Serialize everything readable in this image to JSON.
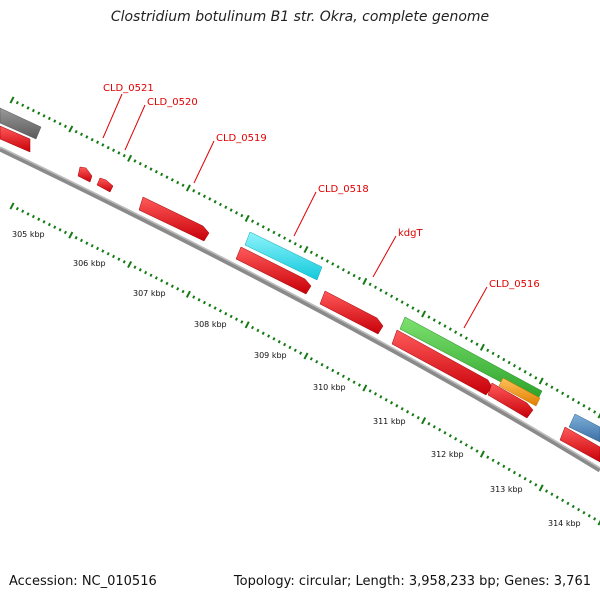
{
  "title": "Clostridium botulinum B1 str. Okra, complete genome",
  "footer": {
    "accession": "Accession: NC_010516",
    "summary": "Topology: circular; Length: 3,958,233 bp; Genes: 3,761"
  },
  "colors": {
    "backbone": "#7a7a7a",
    "tick": "#137a13",
    "cds_red": "#e8101a",
    "cyan": "#1ae0f0",
    "green": "#3cc43a",
    "orange": "#f0900a",
    "grey": "#6d6d6d",
    "steel": "#4a82b8",
    "label": "#e00000"
  },
  "scale_labels": [
    "305 kbp",
    "306 kbp",
    "307 kbp",
    "308 kbp",
    "309 kbp",
    "310 kbp",
    "311 kbp",
    "312 kbp",
    "313 kbp",
    "314 kbp"
  ],
  "gene_labels": [
    "CLD_0521",
    "CLD_0520",
    "CLD_0519",
    "CLD_0518",
    "kdgT",
    "CLD_0516"
  ]
}
